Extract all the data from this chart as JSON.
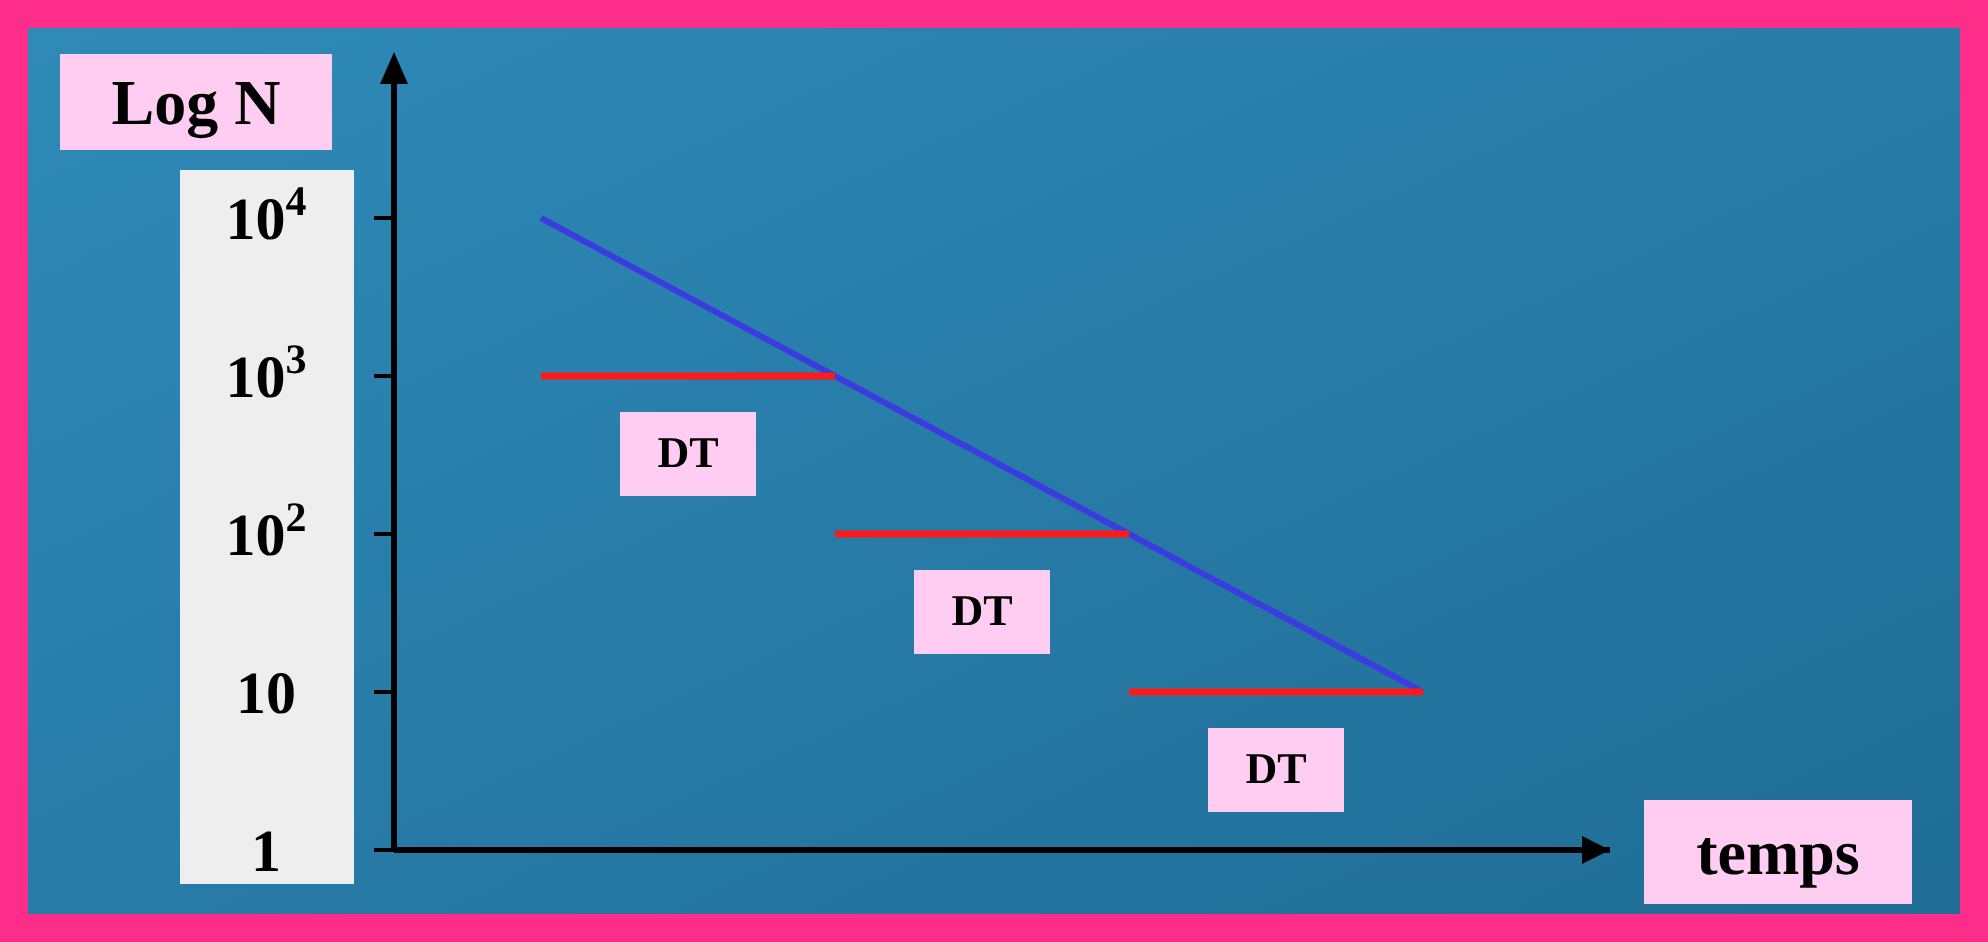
{
  "chart_data": {
    "type": "line",
    "xlabel": "temps",
    "ylabel": "Log N",
    "log": true,
    "categories": [
      null,
      null,
      null,
      null
    ],
    "ylim": [
      1,
      100000
    ],
    "yticks": [
      1,
      10,
      {
        "value": 100,
        "label": "10$^{2}$"
      },
      {
        "value": 1000,
        "label": "10$^{3}$"
      },
      {
        "value": 10000,
        "label": "10$^{4}$"
      }
    ],
    "series": [
      {
        "color": "#3b3be0",
        "values": [
          10000,
          1000,
          100,
          10
        ]
      },
      {
        "type": "line",
        "color": "#ff1a1a",
        "values": [
          1000,
          1000,
          null,
          null
        ]
      },
      {
        "type": "line",
        "color": "#ff1a1a",
        "values": [
          null,
          100,
          100,
          null
        ]
      },
      {
        "type": "line",
        "color": "#ff1a1a",
        "values": [
          null,
          null,
          10,
          10
        ]
      }
    ],
    "annotations": [
      "DT",
      "DT",
      "DT"
    ],
    "grid": false,
    "marker": "none"
  }
}
